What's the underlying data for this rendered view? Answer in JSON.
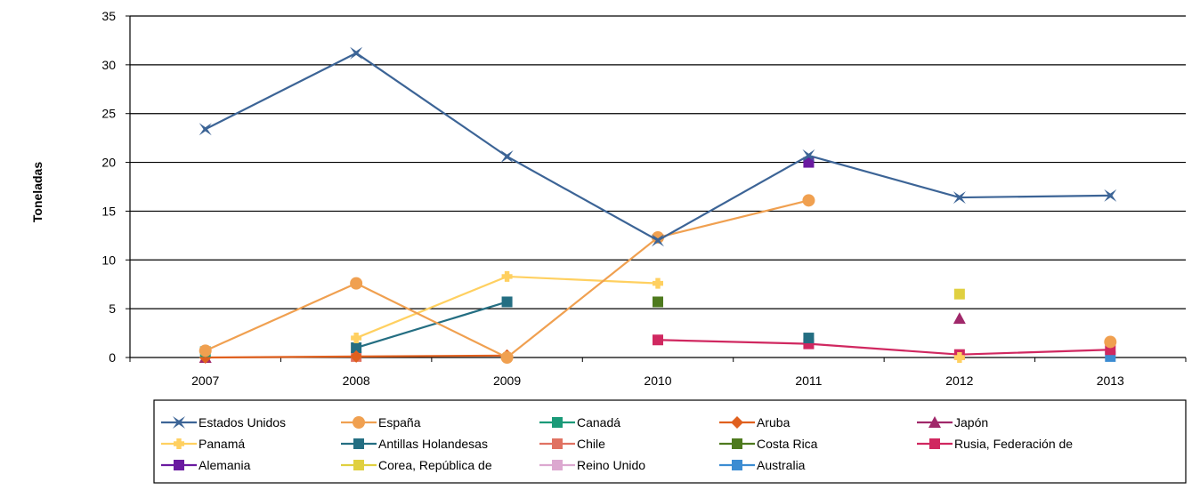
{
  "chart_data": {
    "type": "line",
    "title": "",
    "xlabel": "",
    "ylabel": "Toneladas",
    "ylim": [
      0,
      35
    ],
    "yticks": [
      0,
      5,
      10,
      15,
      20,
      25,
      30,
      35
    ],
    "grid": true,
    "legend_position": "bottom",
    "categories": [
      "2007",
      "2008",
      "2009",
      "2010",
      "2011",
      "2012",
      "2013"
    ],
    "series": [
      {
        "name": "Estados Unidos",
        "color": "#3C6496",
        "marker": "star",
        "values": [
          23.4,
          31.2,
          20.6,
          12.0,
          20.7,
          16.4,
          16.6
        ]
      },
      {
        "name": "España",
        "color": "#F0A050",
        "marker": "circle",
        "values": [
          0.7,
          7.6,
          0.0,
          12.3,
          16.1,
          null,
          1.6
        ]
      },
      {
        "name": "Canadá",
        "color": "#1A9A78",
        "marker": "square",
        "values": [
          0.6,
          null,
          null,
          null,
          null,
          null,
          null
        ]
      },
      {
        "name": "Aruba",
        "color": "#E0601E",
        "marker": "diamond",
        "values": [
          0.0,
          0.1,
          0.2,
          null,
          null,
          null,
          null
        ]
      },
      {
        "name": "Japón",
        "color": "#A0286A",
        "marker": "triangle",
        "values": [
          0.0,
          null,
          null,
          null,
          null,
          4.0,
          null
        ]
      },
      {
        "name": "Panamá",
        "color": "#FFD060",
        "marker": "cross",
        "values": [
          null,
          2.0,
          8.3,
          7.6,
          null,
          0.0,
          null
        ]
      },
      {
        "name": "Antillas Holandesas",
        "color": "#246E82",
        "marker": "square",
        "values": [
          null,
          1.0,
          5.7,
          null,
          2.0,
          null,
          null
        ]
      },
      {
        "name": "Chile",
        "color": "#E07262",
        "marker": "square",
        "values": [
          null,
          0.1,
          null,
          null,
          null,
          null,
          null
        ]
      },
      {
        "name": "Costa Rica",
        "color": "#4E7A1E",
        "marker": "square",
        "values": [
          null,
          null,
          null,
          5.7,
          null,
          null,
          null
        ]
      },
      {
        "name": "Rusia, Federación de",
        "color": "#D02860",
        "marker": "square",
        "values": [
          null,
          null,
          null,
          1.8,
          1.4,
          0.3,
          0.8
        ]
      },
      {
        "name": "Alemania",
        "color": "#6A1AA0",
        "marker": "square",
        "values": [
          null,
          null,
          null,
          null,
          20.0,
          null,
          null
        ]
      },
      {
        "name": "Corea, República de",
        "color": "#E0D040",
        "marker": "square",
        "values": [
          null,
          null,
          null,
          null,
          null,
          6.5,
          null
        ]
      },
      {
        "name": "Reino Unido",
        "color": "#DCA8D0",
        "marker": "square",
        "values": [
          null,
          null,
          null,
          null,
          null,
          null,
          null
        ]
      },
      {
        "name": "Australia",
        "color": "#3C8CD2",
        "marker": "square",
        "values": [
          null,
          null,
          null,
          null,
          null,
          null,
          0.1
        ]
      }
    ]
  }
}
